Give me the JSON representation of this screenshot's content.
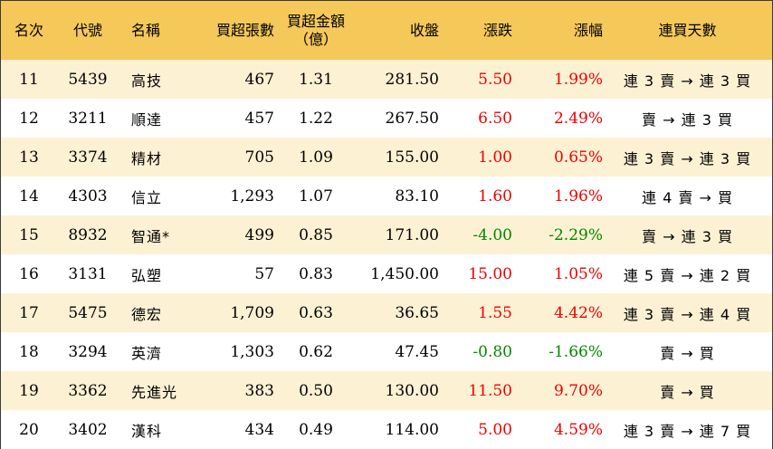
{
  "headers": {
    "rank": "名次",
    "code": "代號",
    "name": "名稱",
    "net_buy_lots": "買超張數",
    "net_buy_amount_line1": "買超金額",
    "net_buy_amount_line2": "（億）",
    "close": "收盤",
    "change": "漲跌",
    "change_pct": "漲幅",
    "consecutive_days": "連買天數"
  },
  "rows": [
    {
      "rank": "11",
      "code": "5439",
      "name": "高技",
      "lots": "467",
      "amount": "1.31",
      "close": "281.50",
      "change": "5.50",
      "pct": "1.99%",
      "trend": "up",
      "days": "連 3 賣 → 連 3 買"
    },
    {
      "rank": "12",
      "code": "3211",
      "name": "順達",
      "lots": "457",
      "amount": "1.22",
      "close": "267.50",
      "change": "6.50",
      "pct": "2.49%",
      "trend": "up",
      "days": "賣 → 連 3 買"
    },
    {
      "rank": "13",
      "code": "3374",
      "name": "精材",
      "lots": "705",
      "amount": "1.09",
      "close": "155.00",
      "change": "1.00",
      "pct": "0.65%",
      "trend": "up",
      "days": "連 3 賣 → 連 3 買"
    },
    {
      "rank": "14",
      "code": "4303",
      "name": "信立",
      "lots": "1,293",
      "amount": "1.07",
      "close": "83.10",
      "change": "1.60",
      "pct": "1.96%",
      "trend": "up",
      "days": "連 4 賣 → 買"
    },
    {
      "rank": "15",
      "code": "8932",
      "name": "智通*",
      "lots": "499",
      "amount": "0.85",
      "close": "171.00",
      "change": "-4.00",
      "pct": "-2.29%",
      "trend": "down",
      "days": "賣 → 連 3 買"
    },
    {
      "rank": "16",
      "code": "3131",
      "name": "弘塑",
      "lots": "57",
      "amount": "0.83",
      "close": "1,450.00",
      "change": "15.00",
      "pct": "1.05%",
      "trend": "up",
      "days": "連 5 賣 → 連 2 買"
    },
    {
      "rank": "17",
      "code": "5475",
      "name": "德宏",
      "lots": "1,709",
      "amount": "0.63",
      "close": "36.65",
      "change": "1.55",
      "pct": "4.42%",
      "trend": "up",
      "days": "連 3 賣 → 連 4 買"
    },
    {
      "rank": "18",
      "code": "3294",
      "name": "英濟",
      "lots": "1,303",
      "amount": "0.62",
      "close": "47.45",
      "change": "-0.80",
      "pct": "-1.66%",
      "trend": "down",
      "days": "賣 → 買"
    },
    {
      "rank": "19",
      "code": "3362",
      "name": "先進光",
      "lots": "383",
      "amount": "0.50",
      "close": "130.00",
      "change": "11.50",
      "pct": "9.70%",
      "trend": "up",
      "days": "賣 → 買"
    },
    {
      "rank": "20",
      "code": "3402",
      "name": "漢科",
      "lots": "434",
      "amount": "0.49",
      "close": "114.00",
      "change": "5.00",
      "pct": "4.59%",
      "trend": "up",
      "days": "連 3 賣 → 連 7 買"
    }
  ],
  "colors": {
    "header_bg": "#f5c85a",
    "odd_row_bg": "#fdf1d4",
    "even_row_bg": "#ffffff",
    "up": "#ee0000",
    "down": "#008800"
  }
}
